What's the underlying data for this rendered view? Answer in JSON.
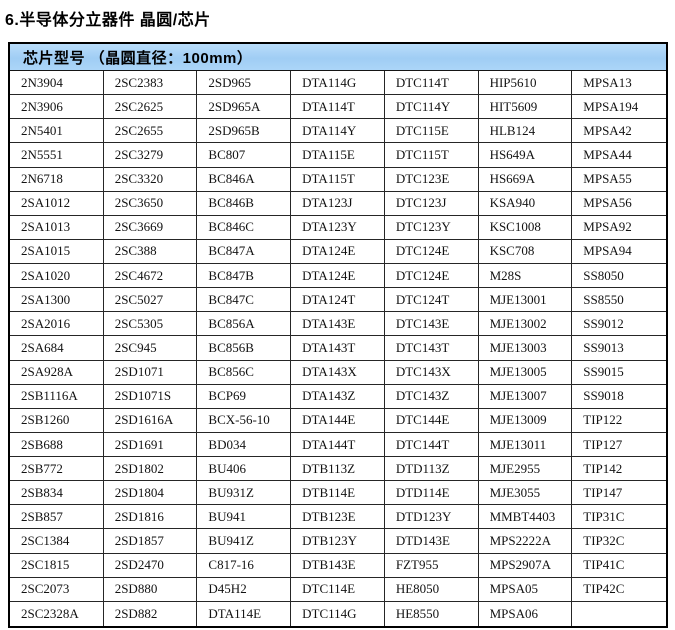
{
  "page": {
    "title": "6.半导体分立器件 晶圆/芯片"
  },
  "theme": {
    "header_bg_top": "#b9ddfa",
    "header_bg_mid": "#a0cdf4",
    "header_bg_bottom": "#abd5f8",
    "table_border": "#000000",
    "cell_text": "#121212"
  },
  "table": {
    "header": "芯片型号 （晶圆直径：100mm）",
    "column_count": 7,
    "rows": [
      [
        "2N3904",
        "2SC2383",
        "2SD965",
        "DTA114G",
        "DTC114T",
        "HIP5610",
        "MPSA13"
      ],
      [
        "2N3906",
        "2SC2625",
        "2SD965A",
        "DTA114T",
        "DTC114Y",
        "HIT5609",
        "MPSA194"
      ],
      [
        "2N5401",
        "2SC2655",
        "2SD965B",
        "DTA114Y",
        "DTC115E",
        "HLB124",
        "MPSA42"
      ],
      [
        "2N5551",
        "2SC3279",
        "BC807",
        "DTA115E",
        "DTC115T",
        "HS649A",
        "MPSA44"
      ],
      [
        "2N6718",
        "2SC3320",
        "BC846A",
        "DTA115T",
        "DTC123E",
        "HS669A",
        "MPSA55"
      ],
      [
        "2SA1012",
        "2SC3650",
        "BC846B",
        "DTA123J",
        "DTC123J",
        "KSA940",
        "MPSA56"
      ],
      [
        "2SA1013",
        "2SC3669",
        "BC846C",
        "DTA123Y",
        "DTC123Y",
        "KSC1008",
        "MPSA92"
      ],
      [
        "2SA1015",
        "2SC388",
        "BC847A",
        "DTA124E",
        "DTC124E",
        "KSC708",
        "MPSA94"
      ],
      [
        "2SA1020",
        "2SC4672",
        "BC847B",
        "DTA124E",
        "DTC124E",
        "M28S",
        "SS8050"
      ],
      [
        "2SA1300",
        "2SC5027",
        "BC847C",
        "DTA124T",
        "DTC124T",
        "MJE13001",
        "SS8550"
      ],
      [
        "2SA2016",
        "2SC5305",
        "BC856A",
        "DTA143E",
        "DTC143E",
        "MJE13002",
        "SS9012"
      ],
      [
        "2SA684",
        "2SC945",
        "BC856B",
        "DTA143T",
        "DTC143T",
        "MJE13003",
        "SS9013"
      ],
      [
        "2SA928A",
        "2SD1071",
        "BC856C",
        "DTA143X",
        "DTC143X",
        "MJE13005",
        "SS9015"
      ],
      [
        "2SB1116A",
        "2SD1071S",
        "BCP69",
        "DTA143Z",
        "DTC143Z",
        "MJE13007",
        "SS9018"
      ],
      [
        "2SB1260",
        "2SD1616A",
        "BCX-56-10",
        "DTA144E",
        "DTC144E",
        "MJE13009",
        "TIP122"
      ],
      [
        "2SB688",
        "2SD1691",
        "BD034",
        "DTA144T",
        "DTC144T",
        "MJE13011",
        "TIP127"
      ],
      [
        "2SB772",
        "2SD1802",
        "BU406",
        "DTB113Z",
        "DTD113Z",
        "MJE2955",
        "TIP142"
      ],
      [
        "2SB834",
        "2SD1804",
        "BU931Z",
        "DTB114E",
        "DTD114E",
        "MJE3055",
        "TIP147"
      ],
      [
        "2SB857",
        "2SD1816",
        "BU941",
        "DTB123E",
        "DTD123Y",
        "MMBT4403",
        "TIP31C"
      ],
      [
        "2SC1384",
        "2SD1857",
        "BU941Z",
        "DTB123Y",
        "DTD143E",
        "MPS2222A",
        "TIP32C"
      ],
      [
        "2SC1815",
        "2SD2470",
        "C817-16",
        "DTB143E",
        "FZT955",
        "MPS2907A",
        "TIP41C"
      ],
      [
        "2SC2073",
        "2SD880",
        "D45H2",
        "DTC114E",
        "HE8050",
        "MPSA05",
        "TIP42C"
      ],
      [
        "2SC2328A",
        "2SD882",
        "DTA114E",
        "DTC114G",
        "HE8550",
        "MPSA06",
        ""
      ]
    ]
  }
}
